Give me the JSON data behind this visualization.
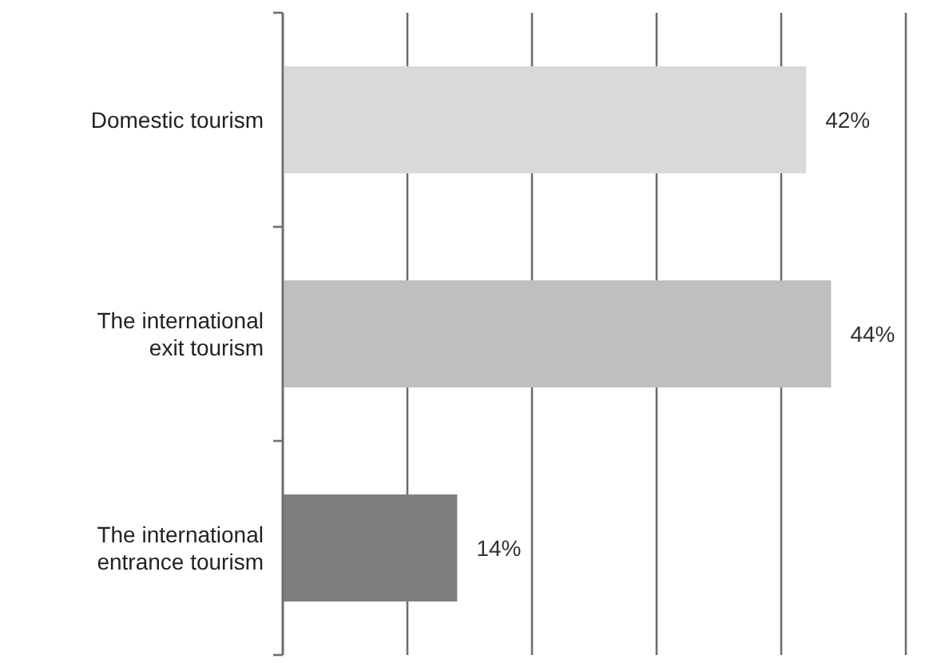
{
  "chart_data": {
    "type": "bar",
    "orientation": "horizontal",
    "categories": [
      "Domestic tourism",
      "The international exit tourism",
      "The international entrance tourism"
    ],
    "values": [
      42,
      44,
      14
    ],
    "colors": [
      "#d9d9d9",
      "#bfbfbf",
      "#7f7f7f"
    ],
    "value_labels": [
      "42%",
      "44%",
      "14%"
    ],
    "xlim": [
      0,
      50
    ],
    "xticks": [
      {
        "value": 0,
        "label": null
      },
      {
        "value": 10,
        "label": null
      },
      {
        "value": 20,
        "label": null
      },
      {
        "value": 30,
        "label": null
      },
      {
        "value": 40,
        "label": null
      },
      {
        "value": 50,
        "label": null
      }
    ],
    "tick_labels": "y",
    "grid": "x"
  }
}
